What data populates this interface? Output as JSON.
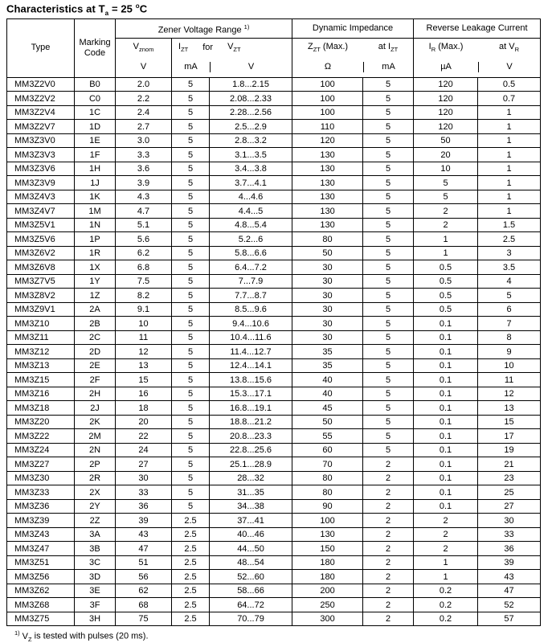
{
  "title": {
    "t1": "Characteristics at T",
    "t1_sub": "a",
    "t2": " = 25 ",
    "t2_sup": "o",
    "t3": "C"
  },
  "header": {
    "type": "Type",
    "marking": "Marking Code",
    "zvr": "Zener Voltage Range",
    "zvr_sup": "1)",
    "di": "Dynamic Impedance",
    "rlc": "Reverse Leakage Current",
    "vznom_base": "V",
    "vznom_sub": "znom",
    "izt_base": "I",
    "izt_sub": "ZT",
    "for_word": "for",
    "vzt_base": "V",
    "vzt_sub": "ZT",
    "zzt_base": "Z",
    "zzt_sub": "ZT",
    "zzt_max": " (Max.)",
    "at": "at ",
    "ir_base": "I",
    "ir_sub": "R",
    "ir_max": " (Max.)",
    "vr_base": "V",
    "vr_sub": "R",
    "units": {
      "vznom": "V",
      "izt": "mA",
      "vzt": "V",
      "zzt": "Ω",
      "at_izt": "mA",
      "ir": "µA",
      "at_vr": "V"
    }
  },
  "table": {
    "col_keys": [
      "type",
      "marking_code",
      "vznom",
      "izt",
      "vzt",
      "zzt",
      "at_izt",
      "ir",
      "at_vr"
    ],
    "rows": [
      [
        "MM3Z2V0",
        "B0",
        "2.0",
        "5",
        "1.8...2.15",
        "100",
        "5",
        "120",
        "0.5"
      ],
      [
        "MM3Z2V2",
        "C0",
        "2.2",
        "5",
        "2.08...2.33",
        "100",
        "5",
        "120",
        "0.7"
      ],
      [
        "MM3Z2V4",
        "1C",
        "2.4",
        "5",
        "2.28...2.56",
        "100",
        "5",
        "120",
        "1"
      ],
      [
        "MM3Z2V7",
        "1D",
        "2.7",
        "5",
        "2.5...2.9",
        "110",
        "5",
        "120",
        "1"
      ],
      [
        "MM3Z3V0",
        "1E",
        "3.0",
        "5",
        "2.8...3.2",
        "120",
        "5",
        "50",
        "1"
      ],
      [
        "MM3Z3V3",
        "1F",
        "3.3",
        "5",
        "3.1...3.5",
        "130",
        "5",
        "20",
        "1"
      ],
      [
        "MM3Z3V6",
        "1H",
        "3.6",
        "5",
        "3.4...3.8",
        "130",
        "5",
        "10",
        "1"
      ],
      [
        "MM3Z3V9",
        "1J",
        "3.9",
        "5",
        "3.7...4.1",
        "130",
        "5",
        "5",
        "1"
      ],
      [
        "MM3Z4V3",
        "1K",
        "4.3",
        "5",
        "4...4.6",
        "130",
        "5",
        "5",
        "1"
      ],
      [
        "MM3Z4V7",
        "1M",
        "4.7",
        "5",
        "4.4...5",
        "130",
        "5",
        "2",
        "1"
      ],
      [
        "MM3Z5V1",
        "1N",
        "5.1",
        "5",
        "4.8...5.4",
        "130",
        "5",
        "2",
        "1.5"
      ],
      [
        "MM3Z5V6",
        "1P",
        "5.6",
        "5",
        "5.2...6",
        "80",
        "5",
        "1",
        "2.5"
      ],
      [
        "MM3Z6V2",
        "1R",
        "6.2",
        "5",
        "5.8...6.6",
        "50",
        "5",
        "1",
        "3"
      ],
      [
        "MM3Z6V8",
        "1X",
        "6.8",
        "5",
        "6.4...7.2",
        "30",
        "5",
        "0.5",
        "3.5"
      ],
      [
        "MM3Z7V5",
        "1Y",
        "7.5",
        "5",
        "7...7.9",
        "30",
        "5",
        "0.5",
        "4"
      ],
      [
        "MM3Z8V2",
        "1Z",
        "8.2",
        "5",
        "7.7...8.7",
        "30",
        "5",
        "0.5",
        "5"
      ],
      [
        "MM3Z9V1",
        "2A",
        "9.1",
        "5",
        "8.5...9.6",
        "30",
        "5",
        "0.5",
        "6"
      ],
      [
        "MM3Z10",
        "2B",
        "10",
        "5",
        "9.4...10.6",
        "30",
        "5",
        "0.1",
        "7"
      ],
      [
        "MM3Z11",
        "2C",
        "11",
        "5",
        "10.4...11.6",
        "30",
        "5",
        "0.1",
        "8"
      ],
      [
        "MM3Z12",
        "2D",
        "12",
        "5",
        "11.4...12.7",
        "35",
        "5",
        "0.1",
        "9"
      ],
      [
        "MM3Z13",
        "2E",
        "13",
        "5",
        "12.4...14.1",
        "35",
        "5",
        "0.1",
        "10"
      ],
      [
        "MM3Z15",
        "2F",
        "15",
        "5",
        "13.8...15.6",
        "40",
        "5",
        "0.1",
        "11"
      ],
      [
        "MM3Z16",
        "2H",
        "16",
        "5",
        "15.3...17.1",
        "40",
        "5",
        "0.1",
        "12"
      ],
      [
        "MM3Z18",
        "2J",
        "18",
        "5",
        "16.8...19.1",
        "45",
        "5",
        "0.1",
        "13"
      ],
      [
        "MM3Z20",
        "2K",
        "20",
        "5",
        "18.8...21.2",
        "50",
        "5",
        "0.1",
        "15"
      ],
      [
        "MM3Z22",
        "2M",
        "22",
        "5",
        "20.8...23.3",
        "55",
        "5",
        "0.1",
        "17"
      ],
      [
        "MM3Z24",
        "2N",
        "24",
        "5",
        "22.8...25.6",
        "60",
        "5",
        "0.1",
        "19"
      ],
      [
        "MM3Z27",
        "2P",
        "27",
        "5",
        "25.1...28.9",
        "70",
        "2",
        "0.1",
        "21"
      ],
      [
        "MM3Z30",
        "2R",
        "30",
        "5",
        "28...32",
        "80",
        "2",
        "0.1",
        "23"
      ],
      [
        "MM3Z33",
        "2X",
        "33",
        "5",
        "31...35",
        "80",
        "2",
        "0.1",
        "25"
      ],
      [
        "MM3Z36",
        "2Y",
        "36",
        "5",
        "34...38",
        "90",
        "2",
        "0.1",
        "27"
      ],
      [
        "MM3Z39",
        "2Z",
        "39",
        "2.5",
        "37...41",
        "100",
        "2",
        "2",
        "30"
      ],
      [
        "MM3Z43",
        "3A",
        "43",
        "2.5",
        "40...46",
        "130",
        "2",
        "2",
        "33"
      ],
      [
        "MM3Z47",
        "3B",
        "47",
        "2.5",
        "44...50",
        "150",
        "2",
        "2",
        "36"
      ],
      [
        "MM3Z51",
        "3C",
        "51",
        "2.5",
        "48...54",
        "180",
        "2",
        "1",
        "39"
      ],
      [
        "MM3Z56",
        "3D",
        "56",
        "2.5",
        "52...60",
        "180",
        "2",
        "1",
        "43"
      ],
      [
        "MM3Z62",
        "3E",
        "62",
        "2.5",
        "58...66",
        "200",
        "2",
        "0.2",
        "47"
      ],
      [
        "MM3Z68",
        "3F",
        "68",
        "2.5",
        "64...72",
        "250",
        "2",
        "0.2",
        "52"
      ],
      [
        "MM3Z75",
        "3H",
        "75",
        "2.5",
        "70...79",
        "300",
        "2",
        "0.2",
        "57"
      ]
    ]
  },
  "footnote": {
    "sup": "1)",
    "v": "V",
    "v_sub": "Z",
    "text": " is tested with pulses (20 ms)."
  }
}
